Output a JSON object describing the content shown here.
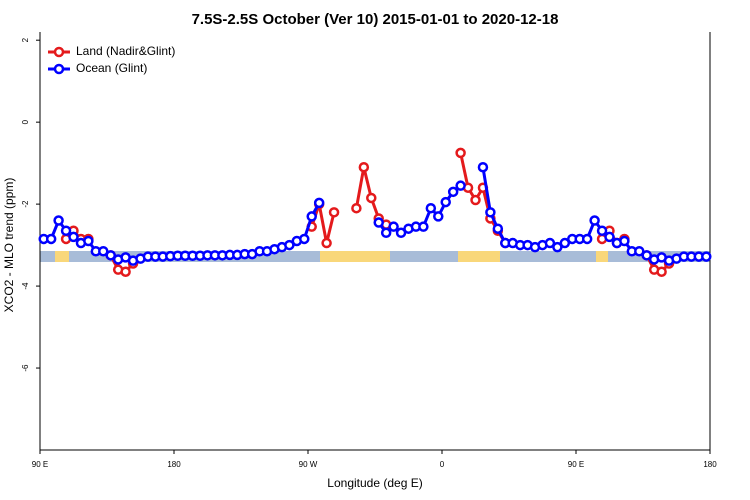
{
  "chart_data": {
    "type": "line",
    "title": "7.5S-2.5S October (Ver 10)   2015-01-01 to 2020-12-18",
    "xlabel": "Longitude (deg E)",
    "ylabel": "XCO2 - MLO trend (ppm)",
    "xlim": [
      90,
      540
    ],
    "ylim": [
      -8,
      2.2
    ],
    "xticks": [
      {
        "value": 90,
        "label": "90 E"
      },
      180,
      {
        "value": 270,
        "label": "90 W"
      },
      {
        "value": 360,
        "label": "0"
      },
      {
        "value": 450,
        "label": "90 E"
      },
      {
        "value": 540,
        "label": "180"
      }
    ],
    "yticks": [
      2,
      0,
      -2,
      -4,
      -6
    ],
    "legend": "upper left",
    "x": [
      92.5,
      97.5,
      102.5,
      107.5,
      112.5,
      117.5,
      122.5,
      127.5,
      132.5,
      137.5,
      142.5,
      147.5,
      152.5,
      157.5,
      162.5,
      167.5,
      172.5,
      177.5,
      182.5,
      187.5,
      192.5,
      197.5,
      202.5,
      207.5,
      212.5,
      217.5,
      222.5,
      227.5,
      232.5,
      237.5,
      242.5,
      247.5,
      252.5,
      257.5,
      262.5,
      267.5,
      272.5,
      277.5,
      282.5,
      287.5,
      292.5,
      297.5,
      302.5,
      307.5,
      312.5,
      317.5,
      322.5,
      327.5,
      332.5,
      337.5,
      342.5,
      347.5,
      352.5,
      357.5,
      362.5,
      367.5,
      372.5,
      377.5,
      382.5,
      387.5,
      392.5,
      397.5,
      402.5,
      407.5,
      412.5,
      417.5,
      422.5,
      427.5,
      432.5,
      437.5,
      442.5,
      447.5,
      452.5,
      457.5,
      462.5,
      467.5,
      472.5,
      477.5,
      482.5,
      487.5,
      492.5,
      497.5,
      502.5,
      507.5,
      512.5,
      517.5,
      522.5,
      527.5,
      532.5,
      537.5
    ],
    "series": [
      {
        "name": "Land (Nadir&Glint)",
        "color": "#e41a1c",
        "values": [
          null,
          null,
          null,
          -2.85,
          -2.65,
          -2.85,
          -2.85,
          null,
          null,
          -3.25,
          -3.6,
          -3.65,
          -3.45,
          null,
          null,
          null,
          null,
          null,
          null,
          null,
          null,
          null,
          null,
          null,
          null,
          null,
          null,
          null,
          null,
          null,
          null,
          null,
          null,
          null,
          null,
          null,
          -2.55,
          -2.0,
          -2.95,
          -2.2,
          null,
          null,
          -2.1,
          -1.1,
          -1.85,
          -2.35,
          -2.5,
          null,
          null,
          null,
          null,
          null,
          null,
          null,
          null,
          null,
          -0.75,
          -1.6,
          -1.9,
          -1.6,
          -2.35,
          -2.65,
          -2.95,
          null,
          null,
          null,
          null,
          null,
          null,
          null,
          null,
          null,
          null,
          null,
          null,
          -2.85,
          -2.65,
          -2.95,
          -2.85,
          null,
          null,
          -3.25,
          -3.6,
          -3.65,
          -3.45,
          null,
          null,
          null,
          null,
          null
        ]
      },
      {
        "name": "Ocean (Glint)",
        "color": "#0000ff",
        "values": [
          -2.85,
          -2.85,
          -2.4,
          -2.65,
          -2.8,
          -2.95,
          -2.9,
          -3.15,
          -3.15,
          -3.25,
          -3.35,
          -3.3,
          -3.38,
          -3.33,
          -3.28,
          -3.28,
          -3.28,
          -3.27,
          -3.26,
          -3.26,
          -3.26,
          -3.26,
          -3.25,
          -3.25,
          -3.25,
          -3.24,
          -3.24,
          -3.22,
          -3.22,
          -3.15,
          -3.15,
          -3.1,
          -3.05,
          -3.0,
          -2.9,
          -2.85,
          -2.3,
          -1.97,
          null,
          null,
          null,
          null,
          null,
          null,
          null,
          -2.45,
          -2.7,
          -2.55,
          -2.7,
          -2.6,
          -2.55,
          -2.55,
          -2.1,
          -2.3,
          -1.95,
          -1.7,
          -1.55,
          null,
          null,
          -1.1,
          -2.2,
          -2.6,
          -2.95,
          -2.95,
          -3.0,
          -3.0,
          -3.05,
          -3.0,
          -2.95,
          -3.05,
          -2.95,
          -2.85,
          -2.85,
          -2.85,
          -2.4,
          -2.65,
          -2.8,
          -2.95,
          -2.9,
          -3.15,
          -3.15,
          -3.25,
          -3.35,
          -3.3,
          -3.38,
          -3.33,
          -3.28,
          -3.28,
          -3.28,
          -3.28
        ]
      }
    ]
  }
}
